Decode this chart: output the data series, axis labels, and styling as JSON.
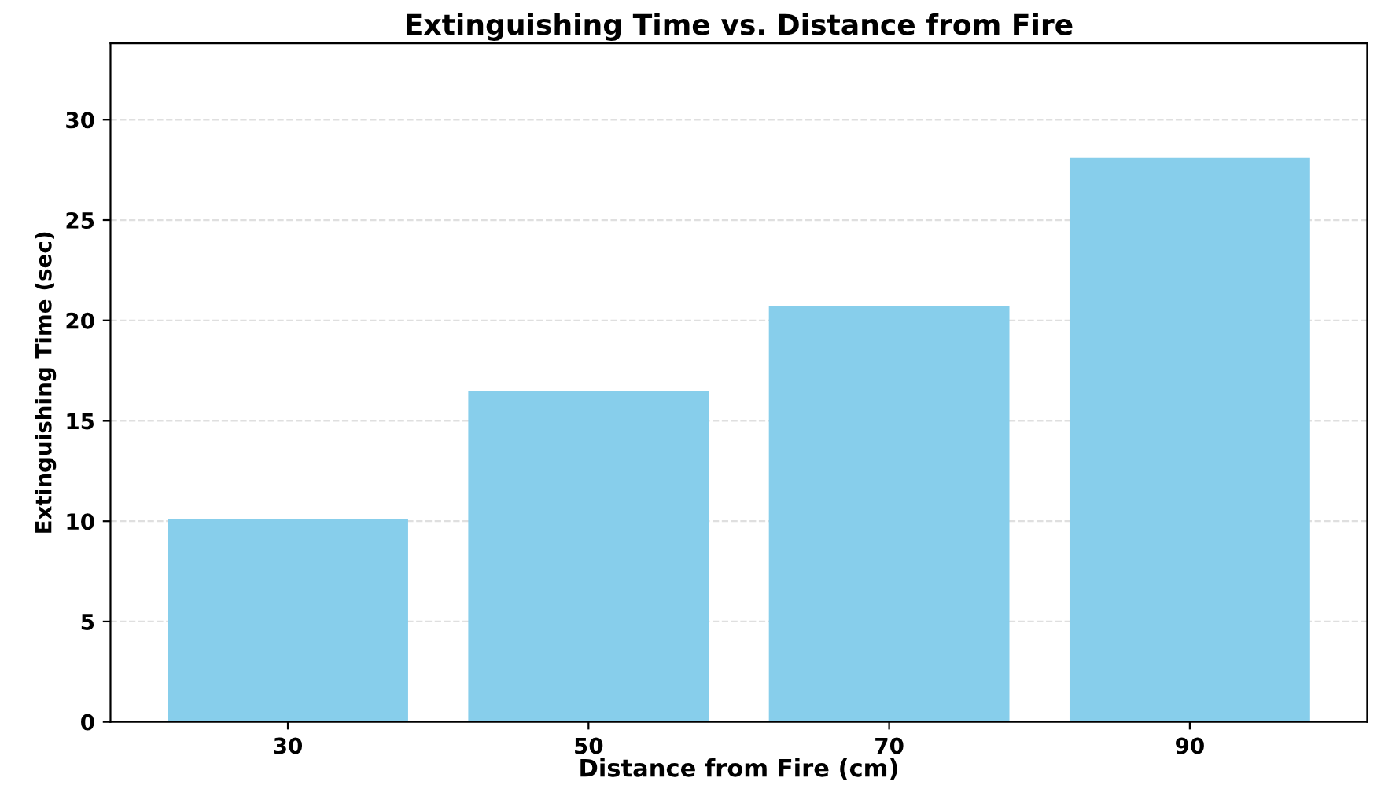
{
  "chart_data": {
    "type": "bar",
    "title": "Extinguishing Time vs. Distance from Fire",
    "xlabel": "Distance from Fire (cm)",
    "ylabel": "Extinguishing Time (sec)",
    "categories": [
      "30",
      "50",
      "70",
      "90"
    ],
    "values": [
      10.1,
      16.5,
      20.7,
      28.1
    ],
    "color": "#87ceeb",
    "ylim": [
      0,
      33.8
    ],
    "yticks": [
      0,
      5,
      10,
      15,
      20,
      25,
      30
    ],
    "grid": "y",
    "line_style": "dashed"
  }
}
